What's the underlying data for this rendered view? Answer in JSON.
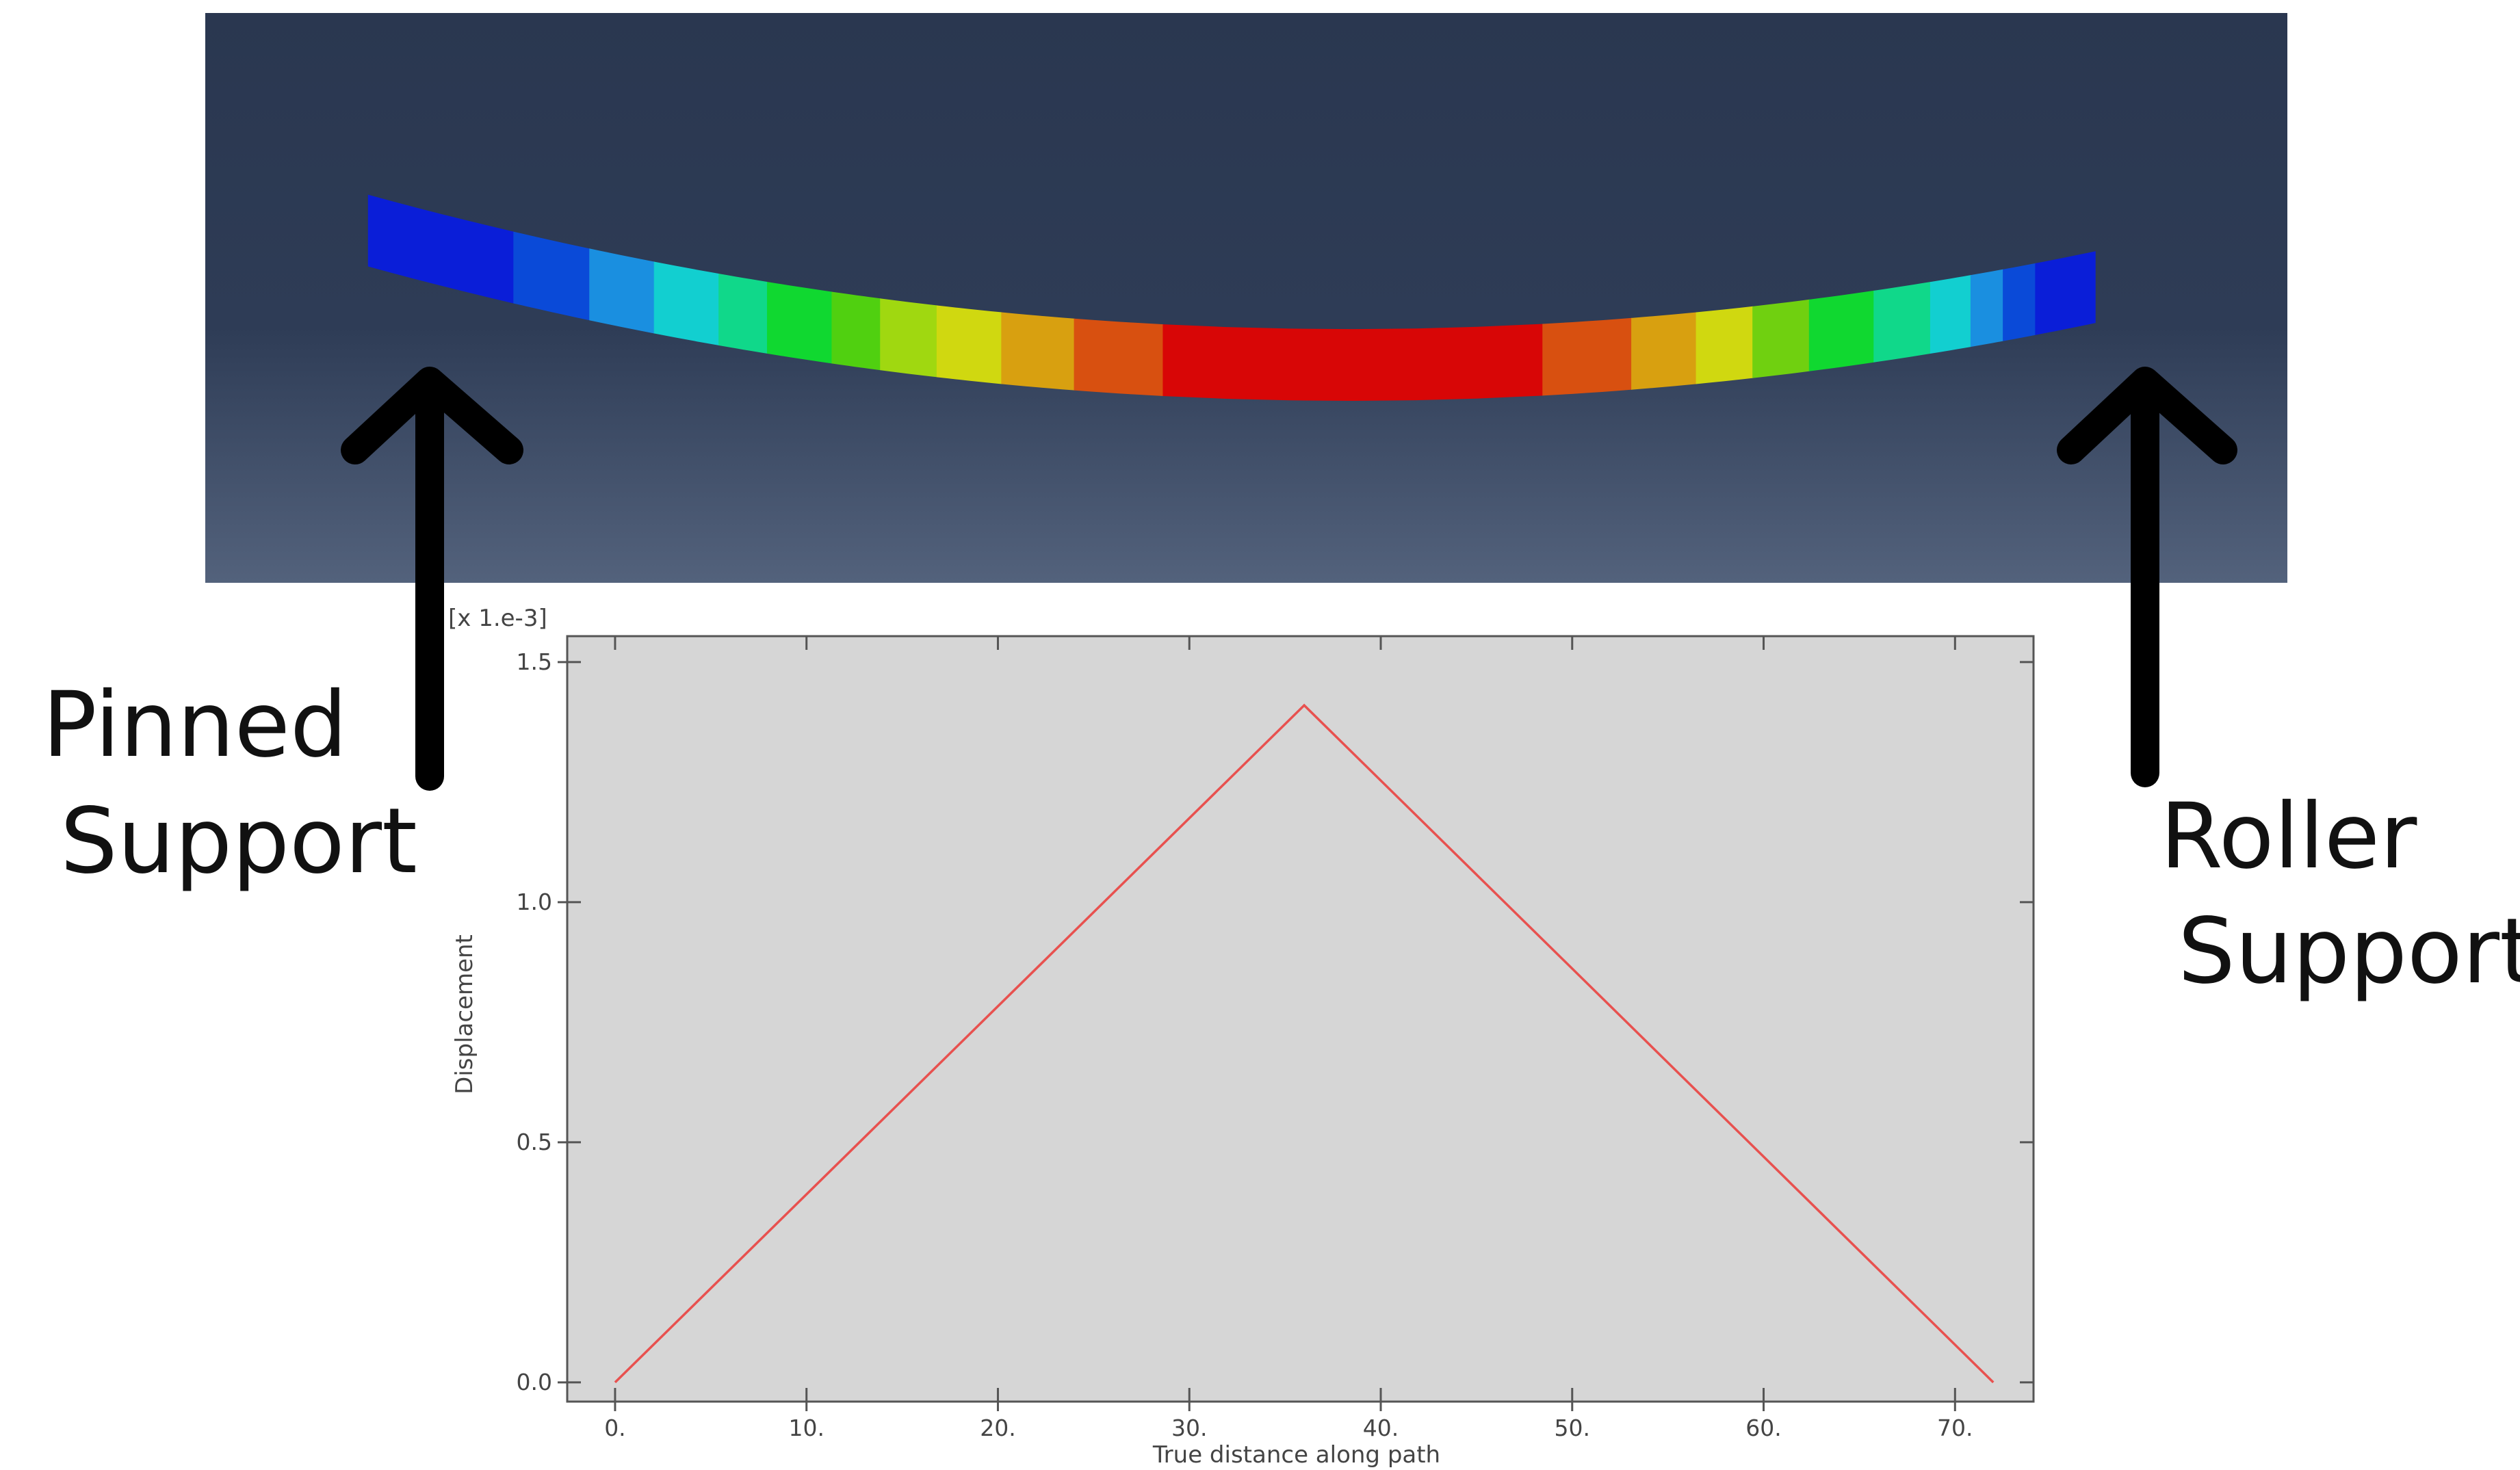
{
  "chart_data": {
    "type": "line",
    "x_label": "True distance along path",
    "y_label": "Displacement",
    "y_multiplier": "[x 1.e-3]",
    "x": [
      0,
      36,
      72
    ],
    "series": [
      {
        "name": "Displacement",
        "color": "#e8514f",
        "values": [
          0,
          1.41,
          0
        ]
      }
    ],
    "xlim": [
      -2.5,
      74.1
    ],
    "ylim": [
      -0.04,
      1.554
    ],
    "xticks": [
      {
        "value": 0,
        "label": "0."
      },
      {
        "value": 10,
        "label": "10."
      },
      {
        "value": 20,
        "label": "20."
      },
      {
        "value": 30,
        "label": "30."
      },
      {
        "value": 40,
        "label": "40."
      },
      {
        "value": 50,
        "label": "50."
      },
      {
        "value": 60,
        "label": "60."
      },
      {
        "value": 70,
        "label": "70."
      }
    ],
    "yticks": [
      {
        "value": 0,
        "label": "0.0"
      },
      0.5,
      {
        "value": 1,
        "label": "1.0"
      },
      1.5
    ],
    "grid": false
  },
  "labels": {
    "pinned": [
      "Pinned",
      "Support"
    ],
    "roller": [
      "Roller",
      "Support"
    ]
  }
}
